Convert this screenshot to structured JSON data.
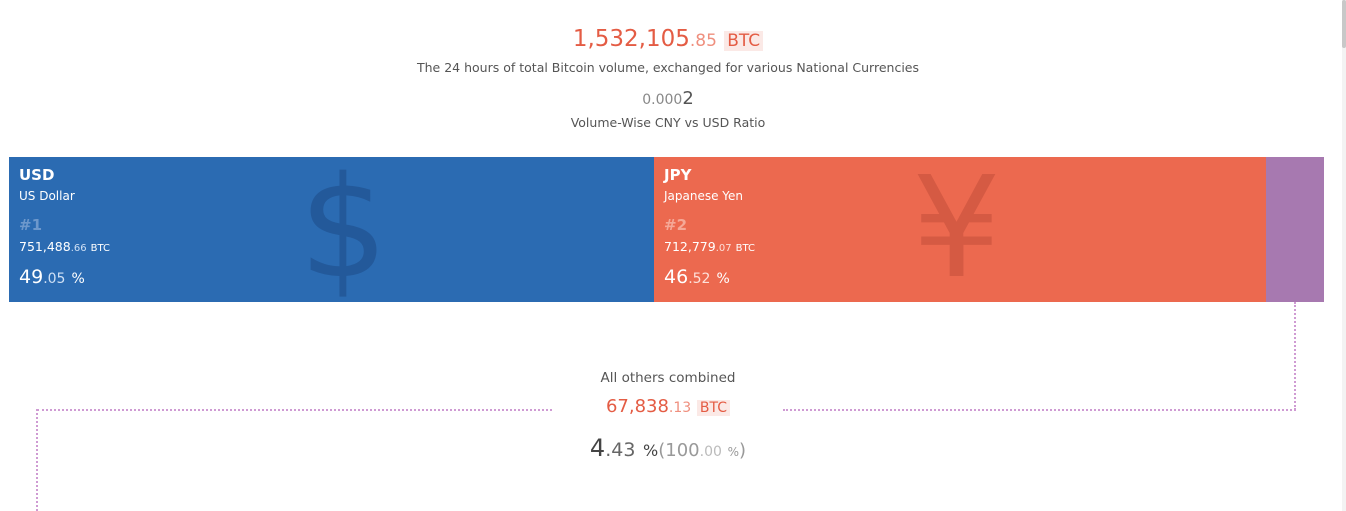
{
  "summary": {
    "total_int": "1,532,105",
    "total_dec": ".85",
    "total_unit": "BTC",
    "total_desc": "The 24 hours of total Bitcoin volume, exchanged for various National Currencies",
    "ratio_lead": "0.000",
    "ratio_last": "2",
    "ratio_desc": "Volume-Wise CNY vs USD Ratio"
  },
  "currencies": [
    {
      "code": "USD",
      "name": "US Dollar",
      "rank": "#1",
      "volume_int": "751,488",
      "volume_dec": ".66",
      "volume_unit": "BTC",
      "pct_int": "49",
      "pct_dec": ".05",
      "pct_sym": "%",
      "glyph": "$",
      "color": "#2b6bb2"
    },
    {
      "code": "JPY",
      "name": "Japanese Yen",
      "rank": "#2",
      "volume_int": "712,779",
      "volume_dec": ".07",
      "volume_unit": "BTC",
      "pct_int": "46",
      "pct_dec": ".52",
      "pct_sym": "%",
      "glyph": "¥",
      "color": "#ec694f"
    }
  ],
  "others": {
    "title": "All others combined",
    "volume_int": "67,838",
    "volume_dec": ".13",
    "volume_unit": "BTC",
    "pct_int": "4",
    "pct_dec": ".43",
    "pct_sym": "%",
    "total_int": "100",
    "total_dec": ".00",
    "total_sym": "%",
    "color": "#a779b0"
  }
}
